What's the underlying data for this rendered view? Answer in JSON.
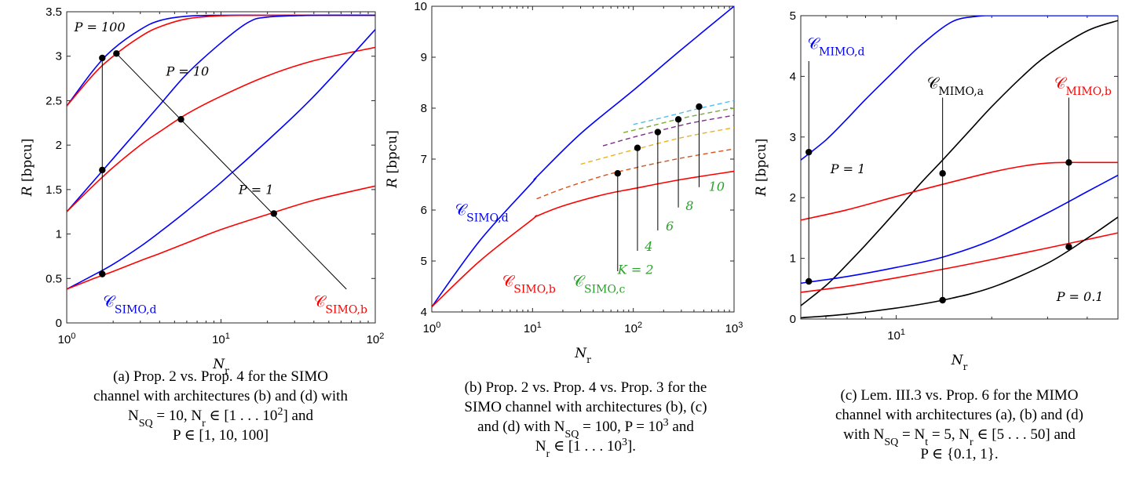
{
  "colors": {
    "blue": "#0000ff",
    "red": "#ff0000",
    "black": "#000000",
    "green": "#2ca02c",
    "k2": "#d95319",
    "k4": "#edb120",
    "k6": "#7e2f8e",
    "k8": "#77ac30",
    "k10": "#4dbeee"
  },
  "chart_data": [
    {
      "id": "a",
      "type": "line",
      "xscale": "log",
      "xlim": [
        1,
        100
      ],
      "ylim": [
        0,
        3.5
      ],
      "xticks": [
        1,
        10,
        100
      ],
      "xtick_labels": [
        "10^0",
        "10^1",
        "10^2"
      ],
      "yticks": [
        0,
        0.5,
        1,
        1.5,
        2,
        2.5,
        3,
        3.5
      ],
      "ytick_labels": [
        "0",
        "0.5",
        "1",
        "1.5",
        "2",
        "2.5",
        "3",
        "3.5"
      ],
      "xlabel": "N_r",
      "ylabel": "R [bpcu]",
      "grid": false,
      "series": [
        {
          "color": "blue",
          "x": [
            1,
            1.5,
            2,
            3,
            4,
            6,
            10,
            20,
            40,
            100
          ],
          "y": [
            2.44,
            2.85,
            3.08,
            3.3,
            3.4,
            3.45,
            3.46,
            3.46,
            3.46,
            3.46
          ]
        },
        {
          "color": "red",
          "x": [
            1,
            1.5,
            2,
            3,
            4,
            6,
            10,
            20,
            40,
            100
          ],
          "y": [
            2.44,
            2.8,
            3.0,
            3.22,
            3.33,
            3.42,
            3.455,
            3.46,
            3.46,
            3.46
          ]
        },
        {
          "color": "blue",
          "x": [
            1,
            1.5,
            2,
            3,
            4,
            6,
            10,
            15,
            20,
            40,
            100
          ],
          "y": [
            1.25,
            1.6,
            1.85,
            2.2,
            2.45,
            2.8,
            3.15,
            3.38,
            3.44,
            3.46,
            3.46
          ]
        },
        {
          "color": "red",
          "x": [
            1,
            1.5,
            2,
            3,
            4,
            6,
            10,
            20,
            40,
            100
          ],
          "y": [
            1.25,
            1.55,
            1.75,
            2.0,
            2.15,
            2.35,
            2.55,
            2.78,
            2.95,
            3.1
          ]
        },
        {
          "color": "blue",
          "x": [
            1,
            1.5,
            2,
            3,
            4,
            6,
            10,
            20,
            40,
            100
          ],
          "y": [
            0.38,
            0.54,
            0.66,
            0.86,
            1.02,
            1.26,
            1.58,
            2.05,
            2.55,
            3.3
          ]
        },
        {
          "color": "red",
          "x": [
            1,
            1.5,
            2,
            3,
            4,
            6,
            10,
            20,
            40,
            100
          ],
          "y": [
            0.38,
            0.5,
            0.58,
            0.7,
            0.78,
            0.9,
            1.05,
            1.22,
            1.38,
            1.54
          ]
        }
      ],
      "markers": [
        [
          1.7,
          2.98
        ],
        [
          1.7,
          1.72
        ],
        [
          1.7,
          0.55
        ],
        [
          2.1,
          3.03
        ],
        [
          5.5,
          2.29
        ],
        [
          22,
          1.23
        ]
      ],
      "vlines": [
        {
          "x": 1.7,
          "y1": 0.55,
          "y2": 2.98
        }
      ],
      "diag": {
        "x1": 2.1,
        "y1": 3.03,
        "x2": 65,
        "y2": 0.38
      },
      "annotations": [
        {
          "text": "P = 100",
          "x": 1.12,
          "y": 3.28,
          "color": "black"
        },
        {
          "text": "P = 10",
          "x": 4.4,
          "y": 2.78,
          "color": "black"
        },
        {
          "text": "P = 1",
          "x": 13,
          "y": 1.45,
          "color": "black"
        },
        {
          "text": "C_SIMO,d",
          "x": 1.72,
          "y": 0.18,
          "color": "blue"
        },
        {
          "text": "C_SIMO,b",
          "x": 40,
          "y": 0.18,
          "color": "red"
        }
      ],
      "caption": [
        "(a) Prop. 2 vs. Prop. 4 for the SIMO",
        "channel with architectures (b) and (d) with",
        "N_SQ = 10, N_r ∈ [1 . . . 10^2] and",
        "P ∈ [1, 10, 100]"
      ]
    },
    {
      "id": "b",
      "type": "line",
      "xscale": "log",
      "xlim": [
        1,
        1000
      ],
      "ylim": [
        4,
        10
      ],
      "xticks": [
        1,
        10,
        100,
        1000
      ],
      "xtick_labels": [
        "10^0",
        "10^1",
        "10^2",
        "10^3"
      ],
      "yticks": [
        4,
        5,
        6,
        7,
        8,
        9,
        10
      ],
      "ytick_labels": [
        "4",
        "5",
        "6",
        "7",
        "8",
        "9",
        "10"
      ],
      "xlabel": "N_r",
      "ylabel": "R [bpcu]",
      "grid": false,
      "series": [
        {
          "color": "blue",
          "x": [
            1,
            3,
            10,
            11,
            30,
            100,
            300,
            1000
          ],
          "y": [
            4.1,
            5.4,
            6.55,
            6.65,
            7.5,
            8.35,
            9.15,
            10
          ]
        },
        {
          "color": "red",
          "x": [
            1,
            3,
            10,
            11,
            20,
            50,
            100,
            300,
            1000
          ],
          "y": [
            4.1,
            5.0,
            5.82,
            5.88,
            6.08,
            6.3,
            6.42,
            6.6,
            6.76
          ]
        },
        {
          "color": "k2",
          "dash": true,
          "x": [
            11,
            20,
            50,
            100,
            300,
            1000
          ],
          "y": [
            6.22,
            6.42,
            6.67,
            6.82,
            7.02,
            7.2
          ]
        },
        {
          "color": "k4",
          "dash": true,
          "x": [
            30,
            50,
            100,
            300,
            1000
          ],
          "y": [
            6.9,
            7.02,
            7.18,
            7.42,
            7.62
          ]
        },
        {
          "color": "k6",
          "dash": true,
          "x": [
            50,
            100,
            200,
            400,
            1000
          ],
          "y": [
            7.26,
            7.43,
            7.58,
            7.72,
            7.86
          ]
        },
        {
          "color": "k8",
          "dash": true,
          "x": [
            80,
            150,
            300,
            600,
            1000
          ],
          "y": [
            7.52,
            7.65,
            7.8,
            7.92,
            8.0
          ]
        },
        {
          "color": "k10",
          "dash": true,
          "x": [
            100,
            200,
            400,
            700,
            1000
          ],
          "y": [
            7.68,
            7.82,
            7.97,
            8.08,
            8.15
          ]
        }
      ],
      "markers": [
        [
          70,
          6.72
        ],
        [
          110,
          7.22
        ],
        [
          175,
          7.53
        ],
        [
          280,
          7.78
        ],
        [
          450,
          8.03
        ]
      ],
      "stems": [
        {
          "x": 70,
          "y1": 4.8,
          "y2": 6.72
        },
        {
          "x": 110,
          "y1": 5.2,
          "y2": 7.22
        },
        {
          "x": 175,
          "y1": 5.6,
          "y2": 7.53
        },
        {
          "x": 280,
          "y1": 6.05,
          "y2": 7.78
        },
        {
          "x": 450,
          "y1": 6.45,
          "y2": 8.03
        }
      ],
      "annotations": [
        {
          "text": "C_SIMO,d",
          "x": 1.7,
          "y": 5.9,
          "color": "blue"
        },
        {
          "text": "C_SIMO,b",
          "x": 5,
          "y": 4.5,
          "color": "red"
        },
        {
          "text": "C_SIMO,c",
          "x": 25,
          "y": 4.5,
          "color": "green"
        },
        {
          "text": "K = 2",
          "x": 70,
          "y": 4.75,
          "color": "green"
        },
        {
          "text": "4",
          "x": 130,
          "y": 5.2,
          "color": "green"
        },
        {
          "text": "6",
          "x": 210,
          "y": 5.6,
          "color": "green"
        },
        {
          "text": "8",
          "x": 330,
          "y": 6.0,
          "color": "green"
        },
        {
          "text": "10",
          "x": 560,
          "y": 6.38,
          "color": "green"
        }
      ],
      "caption": [
        "(b) Prop. 2 vs. Prop. 4 vs. Prop. 3 for the",
        "SIMO channel with architectures (b), (c)",
        "and (d) with N_SQ = 100, P = 10^3 and",
        "N_r ∈ [1 . . . 10^3]."
      ]
    },
    {
      "id": "c",
      "type": "line",
      "xscale": "log",
      "xlim": [
        5,
        50
      ],
      "ylim": [
        0,
        5
      ],
      "xticks": [
        10
      ],
      "xtick_labels": [
        "10^1"
      ],
      "yticks": [
        0,
        1,
        2,
        3,
        4,
        5
      ],
      "ytick_labels": [
        "0",
        "1",
        "2",
        "3",
        "4",
        "5"
      ],
      "xlabel": "N_r",
      "ylabel": "R [bpcu]",
      "grid": false,
      "series": [
        {
          "color": "blue",
          "x": [
            5,
            6,
            7,
            8,
            10,
            12,
            15,
            18,
            20,
            25,
            30,
            50
          ],
          "y": [
            2.62,
            2.95,
            3.3,
            3.62,
            4.12,
            4.52,
            4.9,
            4.99,
            5.0,
            5.0,
            5.0,
            5.0
          ]
        },
        {
          "color": "black",
          "x": [
            5,
            6,
            7,
            8,
            10,
            12,
            14,
            17,
            20,
            25,
            30,
            40,
            50
          ],
          "y": [
            0.22,
            0.55,
            0.9,
            1.22,
            1.78,
            2.25,
            2.62,
            3.1,
            3.5,
            4.0,
            4.35,
            4.75,
            4.92
          ]
        },
        {
          "color": "red",
          "x": [
            5,
            7,
            10,
            14,
            20,
            25,
            30,
            35,
            40,
            50
          ],
          "y": [
            1.63,
            1.8,
            2.02,
            2.22,
            2.42,
            2.52,
            2.57,
            2.58,
            2.58,
            2.58
          ]
        },
        {
          "color": "blue",
          "x": [
            5,
            7,
            10,
            14,
            20,
            30,
            40,
            50
          ],
          "y": [
            0.59,
            0.7,
            0.85,
            1.02,
            1.3,
            1.75,
            2.1,
            2.37
          ]
        },
        {
          "color": "red",
          "x": [
            5,
            7,
            10,
            14,
            20,
            30,
            40,
            50
          ],
          "y": [
            0.44,
            0.54,
            0.68,
            0.82,
            0.98,
            1.17,
            1.31,
            1.42
          ]
        },
        {
          "color": "black",
          "x": [
            5,
            7,
            10,
            14,
            20,
            30,
            40,
            50
          ],
          "y": [
            0.02,
            0.08,
            0.18,
            0.31,
            0.52,
            0.92,
            1.33,
            1.68
          ]
        }
      ],
      "markers": [
        [
          5.3,
          2.75
        ],
        [
          5.3,
          0.62
        ],
        [
          14,
          2.4
        ],
        [
          14,
          0.31
        ],
        [
          35,
          2.58
        ],
        [
          35,
          1.19
        ]
      ],
      "vlines": [
        {
          "x": 5.3,
          "y1": 0.62,
          "y2": 4.25
        },
        {
          "x": 14,
          "y1": 0.31,
          "y2": 3.65
        },
        {
          "x": 35,
          "y1": 1.19,
          "y2": 3.65
        }
      ],
      "annotations": [
        {
          "text": "C_MIMO,d",
          "x": 5.25,
          "y": 4.45,
          "color": "blue"
        },
        {
          "text": "C_MIMO,a",
          "x": 12.5,
          "y": 3.8,
          "color": "black"
        },
        {
          "text": "C_MIMO,b",
          "x": 31.5,
          "y": 3.8,
          "color": "red"
        },
        {
          "text": "P = 1",
          "x": 6.2,
          "y": 2.4,
          "color": "black"
        },
        {
          "text": "P = 0.1",
          "x": 32,
          "y": 0.3,
          "color": "black"
        }
      ],
      "caption": [
        "(c) Lem. III.3 vs. Prop. 6 for the MIMO",
        "channel with architectures (a), (b) and (d)",
        "with N_SQ = N_t = 5, N_r ∈ [5 . . . 50] and",
        "P ∈ {0.1, 1}."
      ]
    }
  ]
}
